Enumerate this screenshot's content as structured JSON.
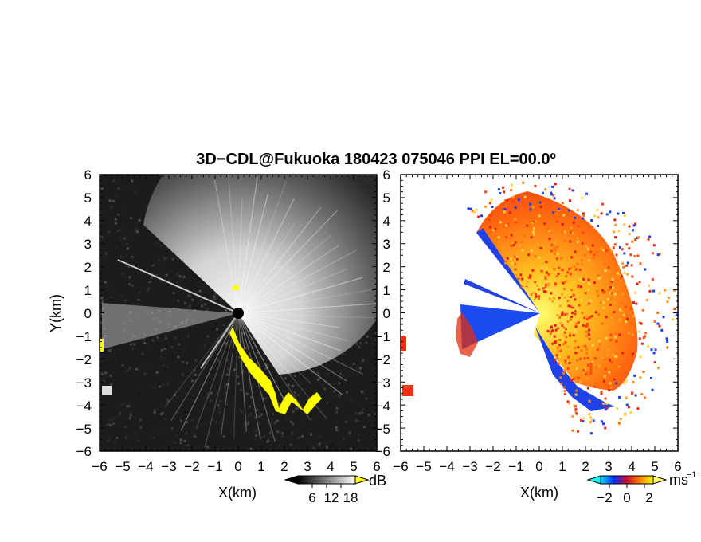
{
  "title": "3D−CDL@Fukuoka 180423 075046 PPI EL=00.0º",
  "colors": {
    "frame": "#000000",
    "echo_yellow": "#ffff00",
    "background_right": "#ffffff"
  },
  "chart_data": [
    {
      "type": "heatmap",
      "panel": "left",
      "quantity": "backscatter intensity",
      "xlabel": "X(km)",
      "ylabel": "Y(km)",
      "xlim": [
        -6,
        6
      ],
      "ylim": [
        -6,
        6
      ],
      "xticks": [
        "−6",
        "−5",
        "−4",
        "−3",
        "−2",
        "−1",
        "0",
        "1",
        "2",
        "3",
        "4",
        "5",
        "6"
      ],
      "yticks": [
        "6",
        "5",
        "4",
        "3",
        "2",
        "1",
        "0",
        "−1",
        "−2",
        "−3",
        "−4",
        "−5",
        "−6"
      ],
      "colorbar": {
        "unit": "dB",
        "range": [
          0,
          24
        ],
        "ticks": [
          "6",
          "12",
          "18"
        ],
        "tick_values": [
          6,
          12,
          18
        ],
        "colormap": "grayscale"
      }
    },
    {
      "type": "heatmap",
      "panel": "right",
      "quantity": "radial velocity",
      "xlabel": "X(km)",
      "ylabel": "",
      "xlim": [
        -6,
        6
      ],
      "ylim": [
        -6,
        6
      ],
      "xticks": [
        "−6",
        "−5",
        "−4",
        "−3",
        "−2",
        "−1",
        "0",
        "1",
        "2",
        "3",
        "4",
        "5",
        "6"
      ],
      "yticks": [
        "6",
        "5",
        "4",
        "3",
        "2",
        "1",
        "0",
        "−1",
        "−2",
        "−3",
        "−4",
        "−5",
        "−6"
      ],
      "colorbar": {
        "unit": "ms",
        "unit_superscript": "−1",
        "range": [
          -3,
          3
        ],
        "ticks": [
          "−2",
          "0",
          "2"
        ],
        "tick_values": [
          -2,
          0,
          2
        ],
        "colormap": "cyan-blue-red-orange-yellow"
      }
    }
  ]
}
